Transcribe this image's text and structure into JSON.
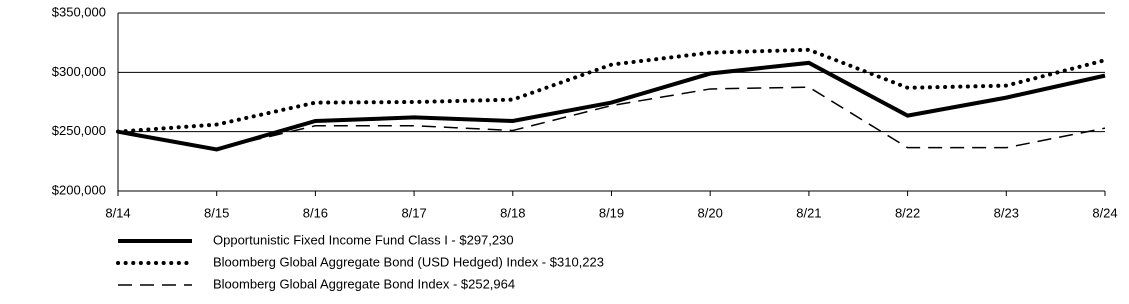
{
  "chart_data": {
    "type": "line",
    "categories": [
      "8/14",
      "8/15",
      "8/16",
      "8/17",
      "8/18",
      "8/19",
      "8/20",
      "8/21",
      "8/22",
      "8/23",
      "8/24"
    ],
    "series": [
      {
        "name": "Opportunistic Fixed Income Fund Class I - $297,230",
        "color": "#000000",
        "dash": "solid",
        "values": [
          250000,
          235000,
          259000,
          262000,
          259000,
          274500,
          299000,
          308000,
          263500,
          278700,
          297230
        ]
      },
      {
        "name": "Bloomberg Global Aggregate Bond (USD Hedged) Index - $310,223",
        "color": "#000000",
        "dash": "dotted",
        "values": [
          250000,
          256000,
          274500,
          275000,
          277000,
          306500,
          316600,
          319000,
          287000,
          288800,
          310223
        ]
      },
      {
        "name": "Bloomberg Global Aggregate Bond Index - $252,964",
        "color": "#000000",
        "dash": "dashed",
        "values": [
          250000,
          235500,
          255000,
          255000,
          251000,
          272000,
          286000,
          287500,
          236500,
          236500,
          252964
        ]
      }
    ],
    "ylim": [
      200000,
      350000
    ],
    "yticks": [
      {
        "value": 200000,
        "label": "$200,000"
      },
      {
        "value": 250000,
        "label": "$250,000"
      },
      {
        "value": 300000,
        "label": "$300,000"
      },
      {
        "value": 350000,
        "label": "$350,000"
      }
    ],
    "grid": true,
    "legend": "bottom"
  }
}
